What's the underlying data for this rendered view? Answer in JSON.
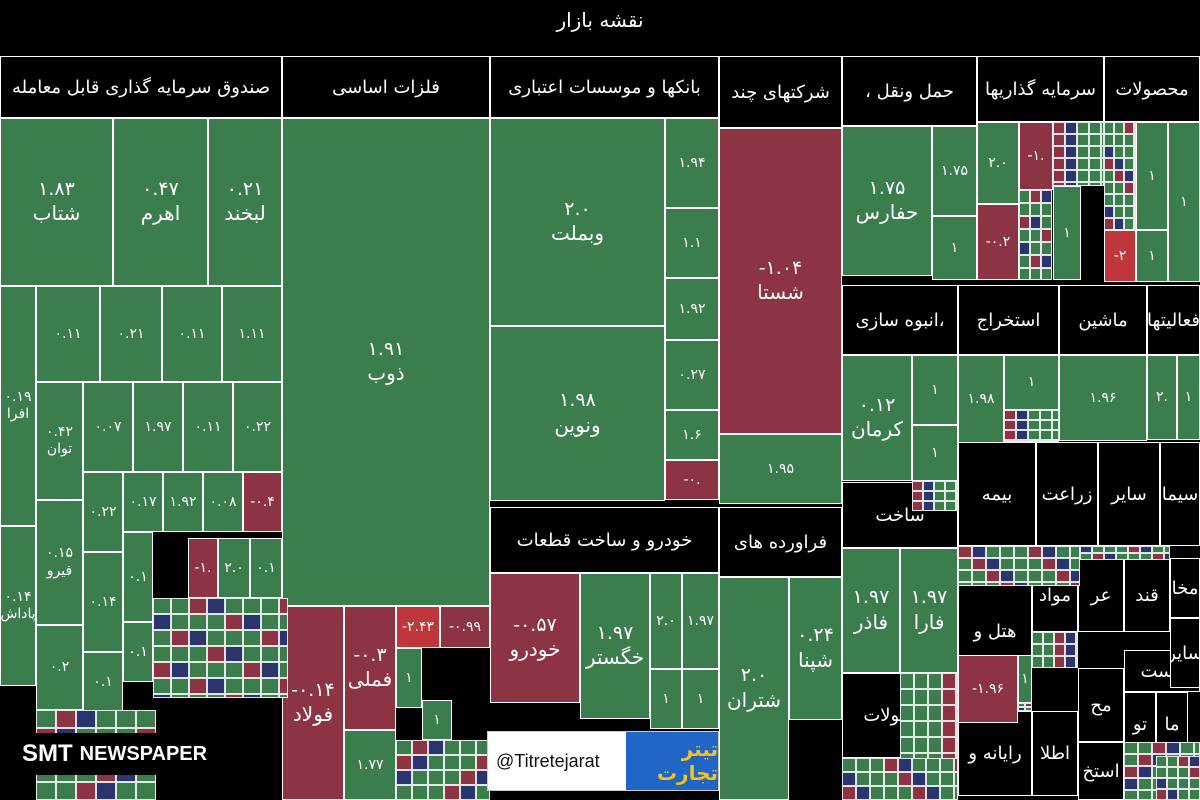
{
  "title": "نقشه بازار",
  "colors": {
    "positive": "#3b7d4c",
    "negative": "#8c3443",
    "strong_negative": "#c0373b",
    "neutral": "#2a356e",
    "border": "#ffffff"
  },
  "chart_data": {
    "type": "heatmap",
    "sectors": [
      {
        "label": "صندوق سرمایه گذاری قابل معامله"
      },
      {
        "label": "فلزات اساسی"
      },
      {
        "label": "بانکها و موسسات اعتباری"
      },
      {
        "label": "شرکتهای چند"
      },
      {
        "label": "حمل ونقل ،"
      },
      {
        "label": "سرمایه گذاریها"
      },
      {
        "label": "محصولات"
      },
      {
        "label": "،انبوه سازی"
      },
      {
        "label": "استخراج"
      },
      {
        "label": "ماشین"
      },
      {
        "label": "فعالیتها"
      },
      {
        "label": "خودرو و ساخت قطعات"
      },
      {
        "label": "فراورده های"
      },
      {
        "label": "ساخت"
      },
      {
        "label": "بیمه"
      },
      {
        "label": "زراعت"
      },
      {
        "label": "سایر"
      },
      {
        "label": "سیما"
      },
      {
        "label": "محصولات"
      },
      {
        "label": "هتل و"
      },
      {
        "label": "مواد"
      },
      {
        "label": "عر"
      },
      {
        "label": "قند"
      },
      {
        "label": "رایانه و"
      },
      {
        "label": "اطلا"
      },
      {
        "label": "مح"
      },
      {
        "label": "تو"
      },
      {
        "label": "ما"
      },
      {
        "label": "لاست"
      },
      {
        "label": "سایر"
      },
      {
        "label": "مخا"
      },
      {
        "label": "استخ"
      }
    ],
    "tiles": [
      {
        "name": "شتاب",
        "value": "۱.۸۳"
      },
      {
        "name": "اهرم",
        "value": "۰.۴۷"
      },
      {
        "name": "لبخند",
        "value": "۰.۲۱"
      },
      {
        "name": "",
        "value": "۰.۱۱"
      },
      {
        "name": "",
        "value": "۰.۲۱"
      },
      {
        "name": "",
        "value": "۰.۱۱"
      },
      {
        "name": "",
        "value": "۱.۱۱"
      },
      {
        "name": "افرا",
        "value": "۰.۱۹"
      },
      {
        "name": "توان",
        "value": "۰.۴۲"
      },
      {
        "name": "",
        "value": "۰.۰۷"
      },
      {
        "name": "",
        "value": "۱.۹۷"
      },
      {
        "name": "",
        "value": "۰.۱۱"
      },
      {
        "name": "",
        "value": "۰.۲۲"
      },
      {
        "name": "",
        "value": "۰.۲۲"
      },
      {
        "name": "",
        "value": "۰.۱۷"
      },
      {
        "name": "",
        "value": "۱.۹۲"
      },
      {
        "name": "",
        "value": "۰.۰۸"
      },
      {
        "name": "",
        "value": "-۰.۴"
      },
      {
        "name": "فیرو",
        "value": "۰.۱۵"
      },
      {
        "name": "",
        "value": "۰.۱۴"
      },
      {
        "name": "",
        "value": "۰.۱"
      },
      {
        "name": "",
        "value": "-۱."
      },
      {
        "name": "",
        "value": "۲.۰"
      },
      {
        "name": "",
        "value": "۰.۱"
      },
      {
        "name": "پاداش",
        "value": "۰.۱۴"
      },
      {
        "name": "",
        "value": "۰.۱"
      },
      {
        "name": "",
        "value": "۰.۲"
      },
      {
        "name": "",
        "value": "۰.۱"
      },
      {
        "name": "ذوب",
        "value": "۱.۹۱"
      },
      {
        "name": "فولاد",
        "value": "-۰.۱۴"
      },
      {
        "name": "فملی",
        "value": "-۰.۳"
      },
      {
        "name": "",
        "value": "-۲.۴۳"
      },
      {
        "name": "",
        "value": "-۰.۹۹"
      },
      {
        "name": "",
        "value": "۱"
      },
      {
        "name": "",
        "value": "۱"
      },
      {
        "name": "",
        "value": "۱.۷۷"
      },
      {
        "name": "وبملت",
        "value": "۲.۰"
      },
      {
        "name": "",
        "value": "۱.۹۴"
      },
      {
        "name": "",
        "value": "۱.۱"
      },
      {
        "name": "",
        "value": "۱.۹۲"
      },
      {
        "name": "",
        "value": "۰.۲۷"
      },
      {
        "name": "ونوین",
        "value": "۱.۹۸"
      },
      {
        "name": "",
        "value": "۱.۶"
      },
      {
        "name": "",
        "value": "-۰."
      },
      {
        "name": "شستا",
        "value": "-۱.۰۴"
      },
      {
        "name": "",
        "value": "۱.۹۵"
      },
      {
        "name": "حفارس",
        "value": "۱.۷۵"
      },
      {
        "name": "",
        "value": "۱.۷۵"
      },
      {
        "name": "",
        "value": "۱"
      },
      {
        "name": "",
        "value": "۲.۰"
      },
      {
        "name": "",
        "value": "-۱."
      },
      {
        "name": "",
        "value": "-۰.۲"
      },
      {
        "name": "",
        "value": "۱"
      },
      {
        "name": "",
        "value": "-۲"
      },
      {
        "name": "",
        "value": "۱"
      },
      {
        "name": "",
        "value": "۱"
      },
      {
        "name": "",
        "value": "۱"
      },
      {
        "name": "کرمان",
        "value": "۰.۱۲"
      },
      {
        "name": "",
        "value": "۱"
      },
      {
        "name": "",
        "value": "۱"
      },
      {
        "name": "",
        "value": "۱.۹۸"
      },
      {
        "name": "",
        "value": "۱.۹۶"
      },
      {
        "name": "",
        "value": "۱"
      },
      {
        "name": "",
        "value": "۲."
      },
      {
        "name": "",
        "value": "۱"
      },
      {
        "name": "خودرو",
        "value": "-۰.۵۷"
      },
      {
        "name": "خگستر",
        "value": "۱.۹۷"
      },
      {
        "name": "",
        "value": "۲.۰"
      },
      {
        "name": "",
        "value": "۱.۹۷"
      },
      {
        "name": "",
        "value": "۱"
      },
      {
        "name": "",
        "value": "۱"
      },
      {
        "name": "شتران",
        "value": "۲.۰"
      },
      {
        "name": "شپنا",
        "value": "۰.۲۴"
      },
      {
        "name": "فاذر",
        "value": "۱.۹۷"
      },
      {
        "name": "فارا",
        "value": "۱.۹۷"
      },
      {
        "name": "",
        "value": "-۱.۹۶"
      },
      {
        "name": "",
        "value": "۱"
      }
    ]
  },
  "watermarks": {
    "brand_a": "SMT",
    "brand_b": "NEWSPAPER",
    "handle": "@Titretejarat",
    "brand_logo": "تیتر تجارت"
  }
}
